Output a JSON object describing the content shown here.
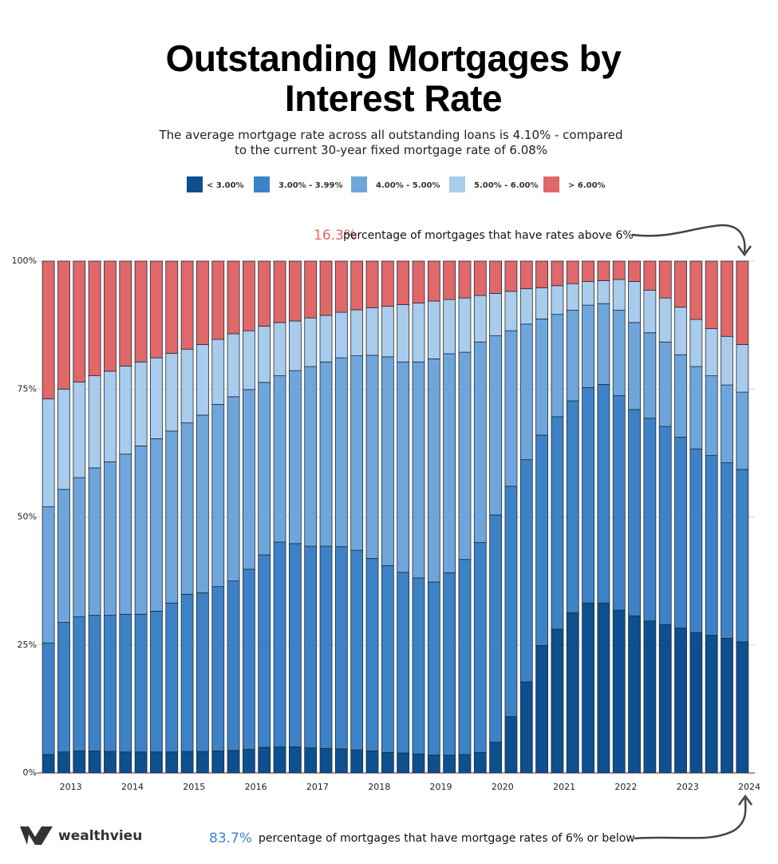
{
  "chart_data": {
    "type": "stacked_bar",
    "title": "Outstanding Mortgages by Interest Rate",
    "subtitle": "The average mortgage rate across all outstanding loans is 4.10% - compared to the current 30-year fixed mortgage rate of 6.08%",
    "categories": [
      null,
      "2013",
      null,
      null,
      null,
      "2014",
      null,
      null,
      null,
      "2015",
      null,
      null,
      null,
      "2016",
      null,
      null,
      null,
      "2017",
      null,
      null,
      null,
      "2018",
      null,
      null,
      null,
      "2019",
      null,
      null,
      null,
      "2020",
      null,
      null,
      null,
      "2021",
      null,
      null,
      null,
      "2022",
      null,
      null,
      null,
      "2023",
      null,
      null,
      null,
      "2024"
    ],
    "series": [
      {
        "name": "< 3.00%",
        "color": "#0d4f8f",
        "values": [
          3.6,
          4.1,
          4.3,
          4.3,
          4.2,
          4.1,
          4.1,
          4.1,
          4.1,
          4.2,
          4.2,
          4.3,
          4.4,
          4.6,
          5.0,
          5.1,
          5.1,
          4.9,
          4.8,
          4.7,
          4.5,
          4.3,
          4.0,
          3.9,
          3.7,
          3.5,
          3.5,
          3.6,
          4.0,
          6.0,
          11.0,
          17.8,
          24.9,
          28.1,
          31.3,
          33.2,
          33.2,
          31.8,
          30.7,
          29.7,
          29.0,
          28.3,
          27.4,
          26.9,
          26.3,
          25.6
        ]
      },
      {
        "name": "3.00% - 3.99%",
        "color": "#3d82c6",
        "values": [
          21.8,
          25.3,
          26.2,
          26.5,
          26.6,
          26.9,
          26.9,
          27.5,
          29.1,
          30.7,
          31.0,
          32.1,
          33.1,
          35.2,
          37.6,
          40.0,
          39.7,
          39.4,
          39.5,
          39.5,
          39.0,
          37.6,
          36.5,
          35.3,
          34.4,
          33.8,
          35.6,
          38.1,
          41.0,
          44.4,
          45.0,
          43.4,
          41.1,
          41.5,
          41.4,
          42.1,
          42.7,
          41.9,
          40.3,
          39.6,
          38.7,
          37.3,
          35.9,
          35.1,
          34.3,
          33.7
        ]
      },
      {
        "name": "4.00% - 5.00%",
        "color": "#6ea6dc",
        "values": [
          26.6,
          26.0,
          27.2,
          28.8,
          30.0,
          31.3,
          32.9,
          33.7,
          33.6,
          33.5,
          34.7,
          35.6,
          36.0,
          35.1,
          33.7,
          32.5,
          33.8,
          35.1,
          36.0,
          36.9,
          38.0,
          39.7,
          40.8,
          41.1,
          42.2,
          43.6,
          42.8,
          40.5,
          39.2,
          35.0,
          30.4,
          26.5,
          22.7,
          20.0,
          17.7,
          16.1,
          15.8,
          16.7,
          17.0,
          16.7,
          16.5,
          16.1,
          16.1,
          15.6,
          15.2,
          15.1
        ]
      },
      {
        "name": "5.00% - 6.00%",
        "color": "#a9cbec",
        "values": [
          21.1,
          19.6,
          18.7,
          18.0,
          17.7,
          17.2,
          16.4,
          15.8,
          15.2,
          14.4,
          13.8,
          12.7,
          12.3,
          11.5,
          11.0,
          10.4,
          9.7,
          9.5,
          9.1,
          8.9,
          9.0,
          9.3,
          9.9,
          11.2,
          11.5,
          11.3,
          10.6,
          10.6,
          9.1,
          8.3,
          7.7,
          6.9,
          6.1,
          5.6,
          5.2,
          4.6,
          4.5,
          6.0,
          8.0,
          8.3,
          8.6,
          9.3,
          9.2,
          9.2,
          9.5,
          9.3
        ]
      },
      {
        "name": "> 6.00%",
        "color": "#e06868",
        "values": [
          26.9,
          25.0,
          23.6,
          22.4,
          21.5,
          20.5,
          19.7,
          18.9,
          18.0,
          17.2,
          16.3,
          15.3,
          14.2,
          13.6,
          12.7,
          12.0,
          11.7,
          11.1,
          10.6,
          10.0,
          9.5,
          9.1,
          8.8,
          8.5,
          8.2,
          7.8,
          7.5,
          7.2,
          6.7,
          6.3,
          5.9,
          5.4,
          5.2,
          4.8,
          4.4,
          4.0,
          3.8,
          3.6,
          4.0,
          5.7,
          7.2,
          9.0,
          11.4,
          13.2,
          14.7,
          16.3
        ]
      }
    ],
    "ylim": [
      0,
      100
    ],
    "yticks": [
      {
        "value": 0,
        "label": "0%"
      },
      {
        "value": 25,
        "label": "25%"
      },
      {
        "value": 50,
        "label": "50%"
      },
      {
        "value": 75,
        "label": "75%"
      },
      {
        "value": 100,
        "label": "100%"
      }
    ],
    "grid": true,
    "annotations": [
      {
        "label": "16.3%",
        "text": "percentage of mortgages that have rates above 6%"
      },
      {
        "label": "83.7%",
        "text": "percentage of mortgages that have mortgage rates of 6% or below"
      }
    ],
    "brand": "wealthvieu"
  }
}
